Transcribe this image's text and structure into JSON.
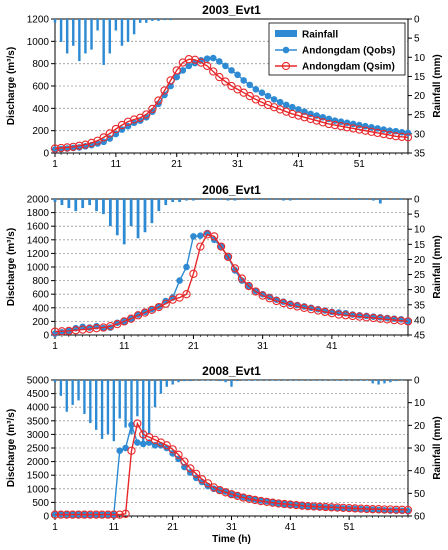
{
  "chart_data": [
    {
      "type": "line",
      "title": "2003_Evt1",
      "xlabel": "",
      "ylabel": "Discharge (m³/s)",
      "y2label": "Rainfall (mm)",
      "ylim": [
        0,
        1200
      ],
      "yticks": [
        0,
        200,
        400,
        600,
        800,
        1000,
        1200
      ],
      "y2lim": [
        0,
        35
      ],
      "y2ticks": [
        0,
        5,
        10,
        15,
        20,
        25,
        30,
        35
      ],
      "xlim": [
        1,
        59
      ],
      "xticks": [
        1,
        11,
        21,
        31,
        41,
        51
      ],
      "grid": true,
      "legend": {
        "position": "top-right",
        "labels": [
          "Rainfall",
          "Andongdam (Qobs)",
          "Andongdam (Qsim)"
        ]
      },
      "series": [
        {
          "name": "Rainfall",
          "kind": "bar-inverted",
          "axis": "right",
          "color": "#2e8bd3",
          "x": [
            1,
            2,
            3,
            4,
            5,
            6,
            7,
            8,
            9,
            10,
            11,
            12,
            13,
            14,
            15,
            16,
            17,
            18,
            19,
            20
          ],
          "values": [
            1,
            6,
            9,
            7,
            11,
            9,
            8,
            3,
            12,
            9,
            3,
            7,
            6,
            4,
            1,
            1,
            0.5,
            0.5,
            0.3,
            0.3
          ]
        },
        {
          "name": "Andongdam (Qobs)",
          "kind": "line-marker",
          "axis": "left",
          "color": "#2e8bd3",
          "x": [
            1,
            2,
            3,
            4,
            5,
            6,
            7,
            8,
            9,
            10,
            11,
            12,
            13,
            14,
            15,
            16,
            17,
            18,
            19,
            20,
            21,
            22,
            23,
            24,
            25,
            26,
            27,
            28,
            29,
            30,
            31,
            32,
            33,
            34,
            35,
            36,
            37,
            38,
            39,
            40,
            41,
            42,
            43,
            44,
            45,
            46,
            47,
            48,
            49,
            50,
            51,
            52,
            53,
            54,
            55,
            56,
            57,
            58,
            59
          ],
          "values": [
            30,
            35,
            40,
            45,
            50,
            60,
            70,
            85,
            100,
            130,
            170,
            210,
            240,
            270,
            290,
            320,
            370,
            440,
            520,
            600,
            680,
            740,
            780,
            805,
            830,
            845,
            850,
            820,
            780,
            740,
            700,
            650,
            610,
            570,
            540,
            510,
            480,
            455,
            430,
            410,
            390,
            370,
            350,
            335,
            320,
            305,
            290,
            280,
            270,
            260,
            250,
            240,
            230,
            220,
            210,
            200,
            195,
            185,
            180
          ]
        },
        {
          "name": "Andongdam (Qsim)",
          "kind": "line-marker",
          "axis": "left",
          "color": "#e8282b",
          "x": [
            1,
            2,
            3,
            4,
            5,
            6,
            7,
            8,
            9,
            10,
            11,
            12,
            13,
            14,
            15,
            16,
            17,
            18,
            19,
            20,
            21,
            22,
            23,
            24,
            25,
            26,
            27,
            28,
            29,
            30,
            31,
            32,
            33,
            34,
            35,
            36,
            37,
            38,
            39,
            40,
            41,
            42,
            43,
            44,
            45,
            46,
            47,
            48,
            49,
            50,
            51,
            52,
            53,
            54,
            55,
            56,
            57,
            58,
            59
          ],
          "values": [
            40,
            45,
            50,
            55,
            65,
            75,
            90,
            110,
            140,
            175,
            215,
            250,
            280,
            300,
            315,
            345,
            395,
            470,
            560,
            650,
            740,
            810,
            840,
            835,
            810,
            780,
            730,
            680,
            640,
            600,
            570,
            540,
            510,
            480,
            455,
            430,
            410,
            390,
            370,
            350,
            335,
            320,
            305,
            290,
            275,
            260,
            250,
            240,
            230,
            220,
            210,
            200,
            190,
            180,
            170,
            160,
            150,
            145,
            140
          ]
        }
      ]
    },
    {
      "type": "line",
      "title": "2006_Evt1",
      "xlabel": "",
      "ylabel": "Discharge (m³/s)",
      "y2label": "Rainfall (mm)",
      "ylim": [
        0,
        2000
      ],
      "yticks": [
        0,
        200,
        400,
        600,
        800,
        1000,
        1200,
        1400,
        1600,
        1800,
        2000
      ],
      "y2lim": [
        0,
        45
      ],
      "y2ticks": [
        0,
        5,
        10,
        15,
        20,
        25,
        30,
        35,
        40,
        45
      ],
      "xlim": [
        1,
        52
      ],
      "xticks": [
        1,
        11,
        21,
        31,
        41
      ],
      "grid": true,
      "series": [
        {
          "name": "Rainfall",
          "kind": "bar-inverted",
          "axis": "right",
          "color": "#2e8bd3",
          "x": [
            1,
            2,
            3,
            4,
            5,
            6,
            7,
            8,
            9,
            10,
            11,
            12,
            13,
            14,
            15,
            16,
            17,
            18,
            19,
            20,
            21,
            22,
            23,
            24,
            25,
            26,
            27,
            28,
            29,
            30,
            31,
            32,
            33,
            34,
            35,
            36,
            37,
            38,
            39,
            40,
            41,
            42,
            43,
            44,
            45,
            46,
            47,
            48,
            49,
            50,
            51
          ],
          "values": [
            1,
            2,
            3,
            4,
            3,
            2,
            4,
            5,
            9,
            12,
            15,
            9,
            13,
            11,
            8,
            4,
            2,
            1,
            1,
            0.5,
            0.5,
            0.3,
            0.3,
            0.3,
            0.3,
            0.5,
            0.5,
            0.3,
            0.3,
            0.3,
            0.3,
            0.3,
            0.3,
            0.5,
            0.5,
            0.3,
            0.3,
            0.3,
            0.3,
            0.3,
            0.3,
            0.3,
            0.3,
            0.3,
            0.3,
            0.3,
            0.5,
            1.5,
            0.3,
            0.3,
            0.3
          ]
        },
        {
          "name": "Andongdam (Qobs)",
          "kind": "line-marker",
          "axis": "left",
          "color": "#2e8bd3",
          "x": [
            1,
            2,
            3,
            4,
            5,
            6,
            7,
            8,
            9,
            10,
            11,
            12,
            13,
            14,
            15,
            16,
            17,
            18,
            19,
            20,
            21,
            22,
            23,
            24,
            25,
            26,
            27,
            28,
            29,
            30,
            31,
            32,
            33,
            34,
            35,
            36,
            37,
            38,
            39,
            40,
            41,
            42,
            43,
            44,
            45,
            46,
            47,
            48,
            49,
            50,
            51,
            52
          ],
          "values": [
            20,
            40,
            60,
            100,
            120,
            110,
            130,
            100,
            110,
            180,
            200,
            240,
            300,
            340,
            380,
            420,
            500,
            550,
            800,
            1000,
            1450,
            1460,
            1500,
            1400,
            1300,
            1150,
            950,
            800,
            720,
            650,
            600,
            560,
            520,
            490,
            460,
            440,
            420,
            400,
            380,
            360,
            340,
            330,
            320,
            300,
            290,
            280,
            270,
            260,
            250,
            240,
            230,
            200
          ]
        },
        {
          "name": "Andongdam (Qsim)",
          "kind": "line-marker",
          "axis": "left",
          "color": "#e8282b",
          "x": [
            1,
            2,
            3,
            4,
            5,
            6,
            7,
            8,
            9,
            10,
            11,
            12,
            13,
            14,
            15,
            16,
            17,
            18,
            19,
            20,
            21,
            22,
            23,
            24,
            25,
            26,
            27,
            28,
            29,
            30,
            31,
            32,
            33,
            34,
            35,
            36,
            37,
            38,
            39,
            40,
            41,
            42,
            43,
            44,
            45,
            46,
            47,
            48,
            49,
            50,
            51,
            52
          ],
          "values": [
            50,
            55,
            60,
            70,
            80,
            90,
            100,
            110,
            130,
            160,
            200,
            240,
            290,
            330,
            370,
            410,
            460,
            520,
            550,
            600,
            900,
            1300,
            1480,
            1450,
            1300,
            1150,
            980,
            830,
            720,
            640,
            580,
            540,
            500,
            470,
            440,
            420,
            400,
            380,
            360,
            340,
            320,
            300,
            290,
            280,
            270,
            260,
            250,
            240,
            230,
            220,
            210,
            200
          ]
        }
      ]
    },
    {
      "type": "line",
      "title": "2008_Evt1",
      "xlabel": "Time (h)",
      "ylabel": "Discharge (m³/s)",
      "y2label": "Rainfall (mm)",
      "ylim": [
        0,
        5000
      ],
      "yticks": [
        0,
        500,
        1000,
        1500,
        2000,
        2500,
        3000,
        3500,
        4000,
        4500,
        5000
      ],
      "y2lim": [
        0,
        60
      ],
      "y2ticks": [
        0,
        10,
        20,
        30,
        40,
        50,
        60
      ],
      "xlim": [
        1,
        61
      ],
      "xticks": [
        1,
        11,
        21,
        31,
        41,
        51
      ],
      "grid": true,
      "series": [
        {
          "name": "Rainfall",
          "kind": "bar-inverted",
          "axis": "right",
          "color": "#2e8bd3",
          "x": [
            1,
            2,
            3,
            4,
            5,
            6,
            7,
            8,
            9,
            10,
            11,
            12,
            13,
            14,
            15,
            16,
            17,
            18,
            19,
            20,
            21,
            22,
            23,
            24,
            25,
            26,
            27,
            28,
            29,
            30,
            31,
            32,
            33,
            34,
            35,
            36,
            37,
            38,
            39,
            40,
            41,
            42,
            43,
            44,
            45,
            46,
            47,
            48,
            49,
            50,
            51,
            52,
            53,
            54,
            55,
            56,
            57,
            58,
            59,
            60
          ],
          "values": [
            1,
            7,
            14,
            11,
            9,
            15,
            19,
            22,
            26,
            24,
            27,
            17,
            21,
            24,
            16,
            27,
            24,
            12,
            6,
            3,
            2,
            1,
            0.5,
            0.5,
            0.3,
            0.3,
            0.3,
            0.3,
            0.5,
            1,
            3,
            0.5,
            0.3,
            0.3,
            0.3,
            0.3,
            0.3,
            0.3,
            0.3,
            0.3,
            0.3,
            0.3,
            0.3,
            0.3,
            0.3,
            0.3,
            0.3,
            0.3,
            0.3,
            0.3,
            0.3,
            0.3,
            0.3,
            0.3,
            1.5,
            2,
            1.5,
            1,
            0.5,
            0.3
          ]
        },
        {
          "name": "Andongdam (Qobs)",
          "kind": "line-marker",
          "axis": "left",
          "color": "#2e8bd3",
          "x": [
            1,
            2,
            3,
            4,
            5,
            6,
            7,
            8,
            9,
            10,
            11,
            12,
            13,
            14,
            15,
            16,
            17,
            18,
            19,
            20,
            21,
            22,
            23,
            24,
            25,
            26,
            27,
            28,
            29,
            30,
            31,
            32,
            33,
            34,
            35,
            36,
            37,
            38,
            39,
            40,
            41,
            42,
            43,
            44,
            45,
            46,
            47,
            48,
            49,
            50,
            51,
            52,
            53,
            54,
            55,
            56,
            57,
            58,
            59,
            60,
            61
          ],
          "values": [
            80,
            70,
            60,
            50,
            50,
            50,
            40,
            40,
            40,
            40,
            50,
            2400,
            2500,
            3350,
            2700,
            2650,
            2700,
            2600,
            2600,
            2500,
            2300,
            2100,
            1800,
            1600,
            1400,
            1250,
            1100,
            1000,
            950,
            900,
            800,
            760,
            700,
            650,
            610,
            570,
            540,
            500,
            470,
            440,
            420,
            400,
            380,
            360,
            340,
            330,
            310,
            300,
            290,
            280,
            270,
            260,
            250,
            240,
            230,
            220,
            210,
            200,
            200,
            190,
            180
          ]
        },
        {
          "name": "Andongdam (Qsim)",
          "kind": "line-marker",
          "axis": "left",
          "color": "#e8282b",
          "x": [
            1,
            2,
            3,
            4,
            5,
            6,
            7,
            8,
            9,
            10,
            11,
            12,
            13,
            14,
            15,
            16,
            17,
            18,
            19,
            20,
            21,
            22,
            23,
            24,
            25,
            26,
            27,
            28,
            29,
            30,
            31,
            32,
            33,
            34,
            35,
            36,
            37,
            38,
            39,
            40,
            41,
            42,
            43,
            44,
            45,
            46,
            47,
            48,
            49,
            50,
            51,
            52,
            53,
            54,
            55,
            56,
            57,
            58,
            59,
            60,
            61
          ],
          "values": [
            50,
            50,
            50,
            50,
            50,
            50,
            50,
            50,
            50,
            50,
            50,
            50,
            80,
            2400,
            3400,
            3000,
            2900,
            2800,
            2700,
            2600,
            2450,
            2250,
            2000,
            1750,
            1550,
            1350,
            1200,
            1050,
            950,
            870,
            800,
            740,
            680,
            630,
            590,
            550,
            520,
            490,
            460,
            440,
            420,
            400,
            380,
            360,
            350,
            340,
            330,
            320,
            310,
            300,
            290,
            280,
            270,
            260,
            250,
            250,
            240,
            240,
            230,
            230,
            220
          ]
        }
      ]
    }
  ]
}
